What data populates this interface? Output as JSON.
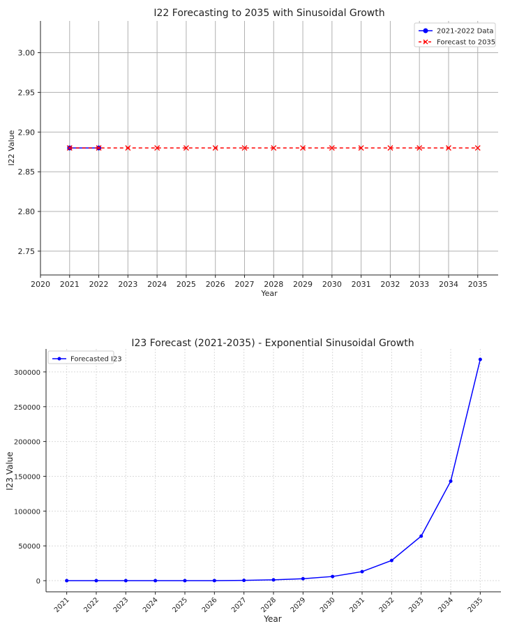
{
  "chart_data": [
    {
      "type": "line",
      "title": "I22 Forecasting to 2035 with Sinusoidal Growth",
      "xlabel": "Year",
      "ylabel": "I22 Value",
      "xlim": [
        2020,
        2035.7
      ],
      "ylim": [
        2.72,
        3.04
      ],
      "xticks": [
        2020,
        2021,
        2022,
        2023,
        2024,
        2025,
        2026,
        2027,
        2028,
        2029,
        2030,
        2031,
        2032,
        2033,
        2034,
        2035
      ],
      "yticks": [
        2.75,
        2.8,
        2.85,
        2.9,
        2.95,
        3.0
      ],
      "ytick_labels": [
        "2.75",
        "2.80",
        "2.85",
        "2.90",
        "2.95",
        "3.00"
      ],
      "grid": true,
      "legend": "top-right",
      "series": [
        {
          "name": "2021-2022 Data",
          "color": "#0000ff",
          "style": "solid-circle",
          "x": [
            2021,
            2022
          ],
          "y": [
            2.88,
            2.88
          ]
        },
        {
          "name": "Forecast to 2035",
          "color": "#ff0000",
          "style": "dashed-x",
          "x": [
            2021,
            2022,
            2023,
            2024,
            2025,
            2026,
            2027,
            2028,
            2029,
            2030,
            2031,
            2032,
            2033,
            2034,
            2035
          ],
          "y": [
            2.88,
            2.88,
            2.88,
            2.88,
            2.88,
            2.88,
            2.88,
            2.88,
            2.88,
            2.88,
            2.88,
            2.88,
            2.88,
            2.88,
            2.88
          ]
        }
      ]
    },
    {
      "type": "line",
      "title": "I23 Forecast (2021-2035) - Exponential Sinusoidal Growth",
      "xlabel": "Year",
      "ylabel": "I23 Value",
      "xlim": [
        2020.3,
        2035.7
      ],
      "ylim": [
        -16000,
        333000
      ],
      "xticks": [
        2021,
        2022,
        2023,
        2024,
        2025,
        2026,
        2027,
        2028,
        2029,
        2030,
        2031,
        2032,
        2033,
        2034,
        2035
      ],
      "yticks": [
        0,
        50000,
        100000,
        150000,
        200000,
        250000,
        300000
      ],
      "ytick_labels": [
        "0",
        "50000",
        "100000",
        "150000",
        "200000",
        "250000",
        "300000"
      ],
      "grid": true,
      "legend": "top-left",
      "series": [
        {
          "name": "Forecasted I23",
          "color": "#0000ff",
          "style": "solid-dot",
          "x": [
            2021,
            2022,
            2023,
            2024,
            2025,
            2026,
            2027,
            2028,
            2029,
            2030,
            2031,
            2032,
            2033,
            2034,
            2035
          ],
          "y": [
            0,
            0,
            0,
            0,
            0,
            100,
            400,
            1200,
            2800,
            6000,
            13000,
            29000,
            64000,
            143000,
            318000
          ]
        }
      ]
    }
  ]
}
